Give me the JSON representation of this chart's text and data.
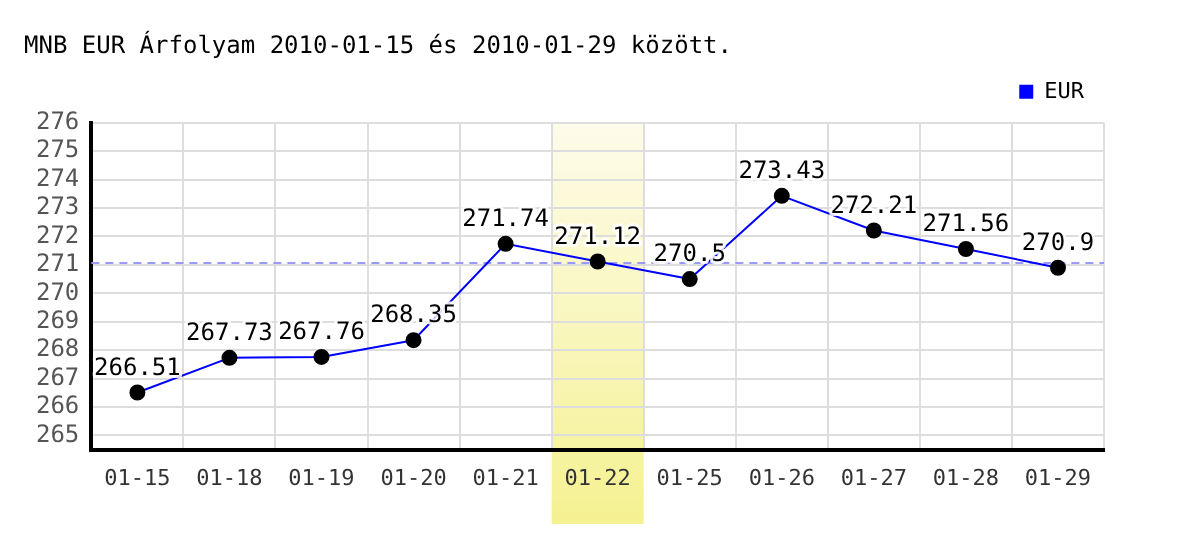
{
  "chart_data": {
    "type": "line",
    "title": "MNB EUR Árfolyam 2010-01-15 és 2010-01-29 között.",
    "categories": [
      "01-15",
      "01-18",
      "01-19",
      "01-20",
      "01-21",
      "01-22",
      "01-25",
      "01-26",
      "01-27",
      "01-28",
      "01-29"
    ],
    "series": [
      {
        "name": "EUR",
        "color": "#0000ff",
        "values": [
          266.51,
          267.73,
          267.76,
          268.35,
          271.74,
          271.12,
          270.5,
          273.43,
          272.21,
          271.56,
          270.9
        ]
      }
    ],
    "ylim": [
      264.5,
      276
    ],
    "yticks": [
      265,
      266,
      267,
      268,
      269,
      270,
      271,
      272,
      273,
      274,
      275,
      276
    ],
    "ref_lines": [
      {
        "axis": "y",
        "value": 271.12,
        "color": "#9999ff",
        "line_style": "dashed"
      }
    ],
    "bands": [
      {
        "axis": "x",
        "from": "01-22",
        "to": "01-22",
        "color": "#f3ef7e"
      }
    ],
    "grid": true,
    "legend": "top right",
    "marker": "circle",
    "line_style": "solid",
    "data_labels": true
  }
}
